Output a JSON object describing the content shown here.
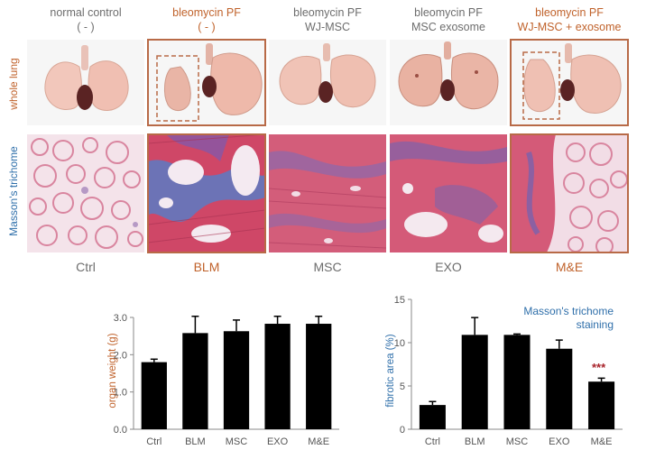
{
  "columns": [
    {
      "id": "ctrl",
      "header_line1": "normal control",
      "header_line2": "( - )",
      "footer": "Ctrl",
      "highlight": false
    },
    {
      "id": "blm",
      "header_line1": "bleomycin PF",
      "header_line2": "( - )",
      "footer": "BLM",
      "highlight": true
    },
    {
      "id": "msc",
      "header_line1": "bleomycin PF",
      "header_line2": "WJ-MSC",
      "footer": "MSC",
      "highlight": false
    },
    {
      "id": "exo",
      "header_line1": "bleomycin PF",
      "header_line2": "MSC exosome",
      "footer": "EXO",
      "highlight": false
    },
    {
      "id": "me",
      "header_line1": "bleomycin PF",
      "header_line2": "WJ-MSC + exosome",
      "footer": "M&E",
      "highlight": true
    }
  ],
  "row_labels": {
    "whole_lung": "whole lung",
    "masson": "Masson's trichome"
  },
  "colors": {
    "gray": "#6d6d6d",
    "orange": "#c0622b",
    "blue": "#2f6faa",
    "star_red": "#a8232b",
    "frame": "#b86a47"
  },
  "chart_data": [
    {
      "type": "bar",
      "title": "",
      "categories": [
        "Ctrl",
        "BLM",
        "MSC",
        "EXO",
        "M&E"
      ],
      "values": [
        1.8,
        2.58,
        2.63,
        2.83,
        2.83
      ],
      "errors": [
        0.08,
        0.45,
        0.3,
        0.2,
        0.2
      ],
      "ylabel": "organ weight (g)",
      "ylim": [
        0,
        3.0
      ],
      "yticks": [
        "0.0",
        "1.0",
        "2.0",
        "3.0"
      ],
      "ytick_values": [
        0,
        1,
        2,
        3
      ]
    },
    {
      "type": "bar",
      "title": "Masson's trichome staining",
      "title_line1": "Masson's trichome",
      "title_line2": "staining",
      "categories": [
        "Ctrl",
        "BLM",
        "MSC",
        "EXO",
        "M&E"
      ],
      "values": [
        2.8,
        10.9,
        10.9,
        9.3,
        5.5
      ],
      "errors": [
        0.4,
        2.0,
        0.1,
        1.0,
        0.4
      ],
      "ylabel": "fibrotic area (%)",
      "ylim": [
        0,
        15
      ],
      "yticks": [
        "0",
        "5",
        "10",
        "15"
      ],
      "ytick_values": [
        0,
        5,
        10,
        15
      ],
      "annotation": "***"
    }
  ]
}
